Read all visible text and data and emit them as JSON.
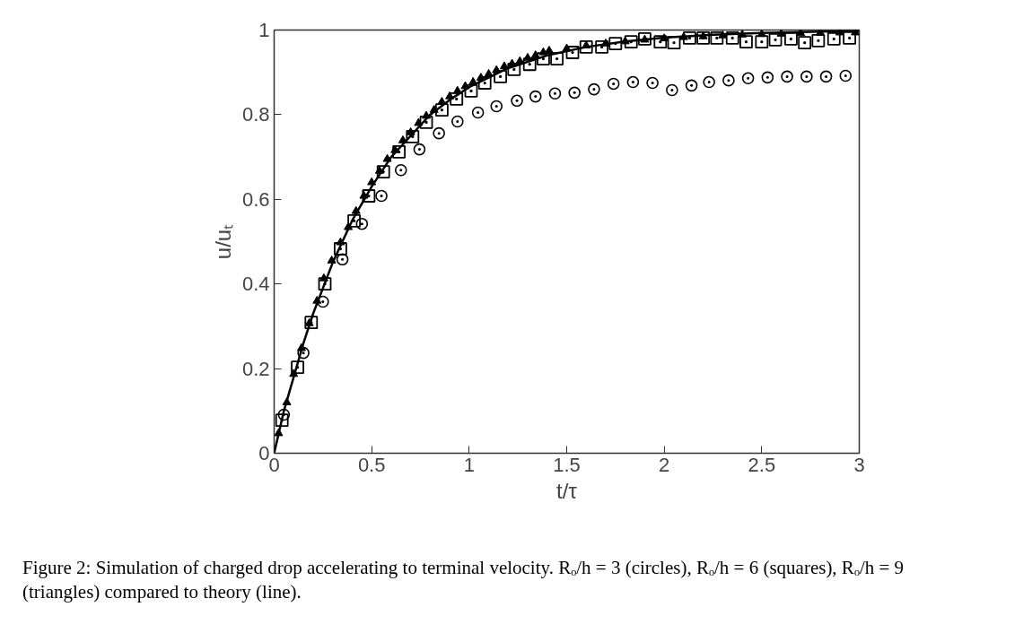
{
  "chart_data": {
    "type": "scatter",
    "xlabel": "t/τ",
    "ylabel": "u/uₜ",
    "xlim": [
      0,
      3
    ],
    "ylim": [
      0,
      1
    ],
    "xticks": [
      0,
      0.5,
      1,
      1.5,
      2,
      2.5,
      3
    ],
    "yticks": [
      0,
      0.2,
      0.4,
      0.6,
      0.8,
      1
    ],
    "grid": false,
    "annotations": [
      "Figure 2: Simulation of charged drop accelerating to terminal velocity. Rₒ/h = 3 (circles), Rₒ/h = 6 (squares), Rₒ/h = 9 (triangles) compared to theory (line)."
    ],
    "series": [
      {
        "marker": "circle",
        "color": "#000000",
        "x": [
          0.05,
          0.15,
          0.25,
          0.35,
          0.45,
          0.55,
          0.65,
          0.745,
          0.845,
          0.94,
          1.045,
          1.14,
          1.245,
          1.34,
          1.44,
          1.54,
          1.64,
          1.74,
          1.84,
          1.94,
          2.04,
          2.14,
          2.23,
          2.33,
          2.43,
          2.53,
          2.63,
          2.73,
          2.83,
          2.93
        ],
        "values": [
          0.091,
          0.237,
          0.358,
          0.458,
          0.542,
          0.608,
          0.669,
          0.718,
          0.756,
          0.784,
          0.805,
          0.82,
          0.833,
          0.843,
          0.85,
          0.852,
          0.86,
          0.873,
          0.877,
          0.875,
          0.858,
          0.869,
          0.877,
          0.881,
          0.886,
          0.888,
          0.89,
          0.89,
          0.89,
          0.892
        ]
      },
      {
        "marker": "square",
        "color": "#000000",
        "x": [
          0.04,
          0.12,
          0.19,
          0.26,
          0.34,
          0.41,
          0.485,
          0.56,
          0.64,
          0.71,
          0.78,
          0.86,
          0.935,
          1.01,
          1.08,
          1.16,
          1.23,
          1.31,
          1.38,
          1.45,
          1.53,
          1.6,
          1.68,
          1.75,
          1.83,
          1.9,
          1.98,
          2.05,
          2.13,
          2.2,
          2.27,
          2.35,
          2.42,
          2.5,
          2.57,
          2.65,
          2.72,
          2.79,
          2.87,
          2.95
        ],
        "values": [
          0.078,
          0.203,
          0.309,
          0.4,
          0.483,
          0.549,
          0.608,
          0.665,
          0.712,
          0.748,
          0.782,
          0.811,
          0.837,
          0.856,
          0.875,
          0.89,
          0.907,
          0.919,
          0.932,
          0.932,
          0.947,
          0.96,
          0.96,
          0.968,
          0.972,
          0.979,
          0.972,
          0.97,
          0.981,
          0.981,
          0.981,
          0.981,
          0.972,
          0.972,
          0.977,
          0.979,
          0.97,
          0.975,
          0.979,
          0.981
        ]
      },
      {
        "marker": "triangle",
        "color": "#000000",
        "x": [
          0.023,
          0.065,
          0.1,
          0.14,
          0.18,
          0.22,
          0.255,
          0.295,
          0.34,
          0.38,
          0.42,
          0.46,
          0.5,
          0.54,
          0.58,
          0.62,
          0.66,
          0.7,
          0.74,
          0.78,
          0.82,
          0.86,
          0.9,
          0.94,
          0.98,
          1.02,
          1.06,
          1.1,
          1.14,
          1.18,
          1.22,
          1.26,
          1.3,
          1.34,
          1.38,
          1.41,
          1.5,
          1.6,
          1.7,
          1.8,
          1.9,
          2.0,
          2.1,
          2.2,
          2.3,
          2.4,
          2.5,
          2.6,
          2.7,
          2.8,
          2.9,
          2.98
        ],
        "values": [
          0.047,
          0.12,
          0.187,
          0.248,
          0.307,
          0.36,
          0.413,
          0.455,
          0.498,
          0.534,
          0.572,
          0.608,
          0.64,
          0.667,
          0.695,
          0.716,
          0.739,
          0.758,
          0.78,
          0.797,
          0.811,
          0.83,
          0.843,
          0.856,
          0.867,
          0.877,
          0.887,
          0.896,
          0.905,
          0.914,
          0.92,
          0.926,
          0.934,
          0.94,
          0.947,
          0.951,
          0.956,
          0.963,
          0.968,
          0.973,
          0.977,
          0.98,
          0.983,
          0.985,
          0.987,
          0.989,
          0.99,
          0.991,
          0.992,
          0.993,
          0.994,
          0.994
        ]
      },
      {
        "type": "line",
        "line_style": "solid",
        "color": "#000000",
        "x": [
          0,
          0.05,
          0.1,
          0.15,
          0.2,
          0.3,
          0.4,
          0.5,
          0.6,
          0.7,
          0.8,
          0.9,
          1.0,
          1.2,
          1.4,
          1.6,
          1.8,
          2.0,
          2.25,
          2.5,
          2.75,
          3.0
        ],
        "values": [
          0,
          0.1,
          0.18,
          0.26,
          0.33,
          0.45,
          0.55,
          0.63,
          0.7,
          0.75,
          0.8,
          0.835,
          0.865,
          0.91,
          0.94,
          0.96,
          0.973,
          0.982,
          0.989,
          0.993,
          0.996,
          0.998
        ]
      }
    ]
  }
}
